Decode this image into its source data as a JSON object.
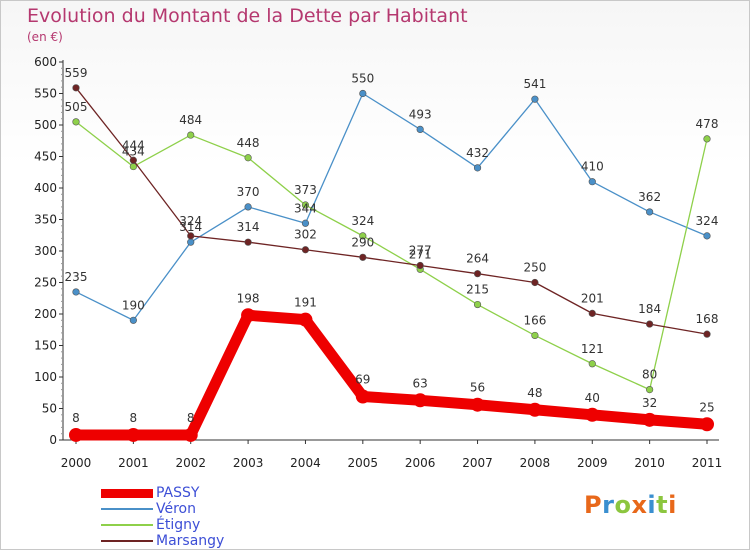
{
  "header": {
    "title": "Evolution du Montant de la Dette par Habitant",
    "subtitle": "(en €)"
  },
  "logo": {
    "text": "Proxiti"
  },
  "colors": {
    "PASSY": "#ee0000",
    "Véron": "#4a90c8",
    "Étigny": "#8ed04a",
    "Marsangy": "#6e2424",
    "title": "#b5386f",
    "legend_text": "#3d4fd6"
  },
  "chart_data": {
    "type": "line",
    "title": "Evolution du Montant de la Dette par Habitant",
    "subtitle": "(en €)",
    "xlabel": "",
    "ylabel": "",
    "ylim": [
      0,
      600
    ],
    "yticks": [
      0,
      50,
      100,
      150,
      200,
      250,
      300,
      350,
      400,
      450,
      500,
      550,
      600
    ],
    "grid": false,
    "legend_position": "bottom-left",
    "categories": [
      "2000",
      "2001",
      "2002",
      "2003",
      "2004",
      "2005",
      "2006",
      "2007",
      "2008",
      "2009",
      "2010",
      "2011"
    ],
    "series": [
      {
        "name": "PASSY",
        "values": [
          8,
          8,
          8,
          198,
          191,
          69,
          63,
          56,
          48,
          40,
          32,
          25
        ]
      },
      {
        "name": "Véron",
        "values": [
          235,
          190,
          314,
          370,
          344,
          550,
          493,
          432,
          541,
          410,
          362,
          324
        ]
      },
      {
        "name": "Étigny",
        "values": [
          505,
          434,
          484,
          448,
          373,
          324,
          271,
          215,
          166,
          121,
          80,
          478
        ]
      },
      {
        "name": "Marsangy",
        "values": [
          559,
          444,
          324,
          314,
          302,
          290,
          277,
          264,
          250,
          201,
          184,
          168
        ]
      }
    ]
  }
}
